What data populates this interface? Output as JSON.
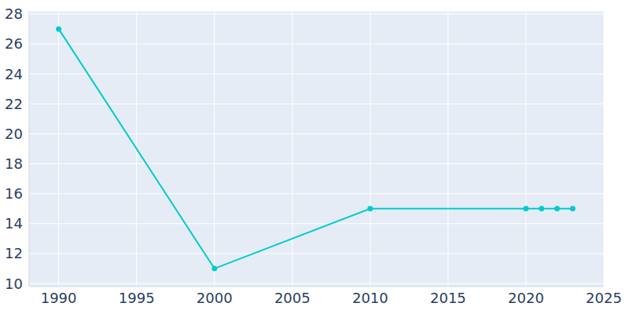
{
  "chart_data": {
    "type": "line",
    "x": [
      1990,
      2000,
      2010,
      2020,
      2021,
      2022,
      2023
    ],
    "values": [
      27,
      11,
      15,
      15,
      15,
      15,
      15
    ],
    "color": "#00cccc",
    "xlim": [
      1988.1,
      2025
    ],
    "xticks": [
      1990,
      1995,
      2000,
      2005,
      2010,
      2015,
      2020,
      2025
    ],
    "ylim": [
      9.8,
      28.2
    ],
    "yticks": [
      10,
      12,
      14,
      16,
      18,
      20,
      22,
      24,
      26,
      28
    ],
    "grid": true,
    "marker": "circle"
  }
}
